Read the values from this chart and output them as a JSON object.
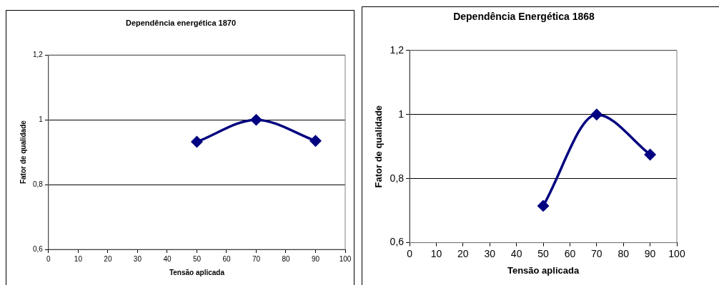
{
  "chart_data": [
    {
      "type": "line",
      "title": "Dependência energética 1870",
      "xlabel": "Tensão aplicada",
      "ylabel": "Fator de qualidade",
      "x": [
        50,
        70,
        90
      ],
      "series": [
        {
          "color": "#000080",
          "values": [
            0.932,
            1.0,
            0.935
          ]
        }
      ],
      "xlim": [
        0,
        100
      ],
      "xticks": [
        0,
        10,
        20,
        30,
        40,
        50,
        60,
        70,
        80,
        90,
        100
      ],
      "ylim": [
        0.6,
        1.2
      ],
      "yticks": [
        {
          "value": 0.6,
          "label": "0,6"
        },
        {
          "value": 0.8,
          "label": "0,8"
        },
        1,
        {
          "value": 1.2,
          "label": "1,2"
        }
      ],
      "grid": "y",
      "marker": "diamond",
      "line_style": "solid"
    },
    {
      "type": "line",
      "title": "Dependência Energética 1868",
      "xlabel": "Tensão aplicada",
      "ylabel": "Fator de qualidade",
      "x": [
        50,
        70,
        90
      ],
      "series": [
        {
          "color": "#000080",
          "values": [
            0.715,
            1.0,
            0.875
          ]
        }
      ],
      "xlim": [
        0,
        100
      ],
      "xticks": [
        0,
        10,
        20,
        30,
        40,
        50,
        60,
        70,
        80,
        90,
        100
      ],
      "ylim": [
        0.6,
        1.2
      ],
      "yticks": [
        {
          "value": 0.6,
          "label": "0,6"
        },
        {
          "value": 0.8,
          "label": "0,8"
        },
        1,
        {
          "value": 1.2,
          "label": "1,2"
        }
      ],
      "grid": "y",
      "marker": "diamond",
      "line_style": "solid"
    }
  ]
}
